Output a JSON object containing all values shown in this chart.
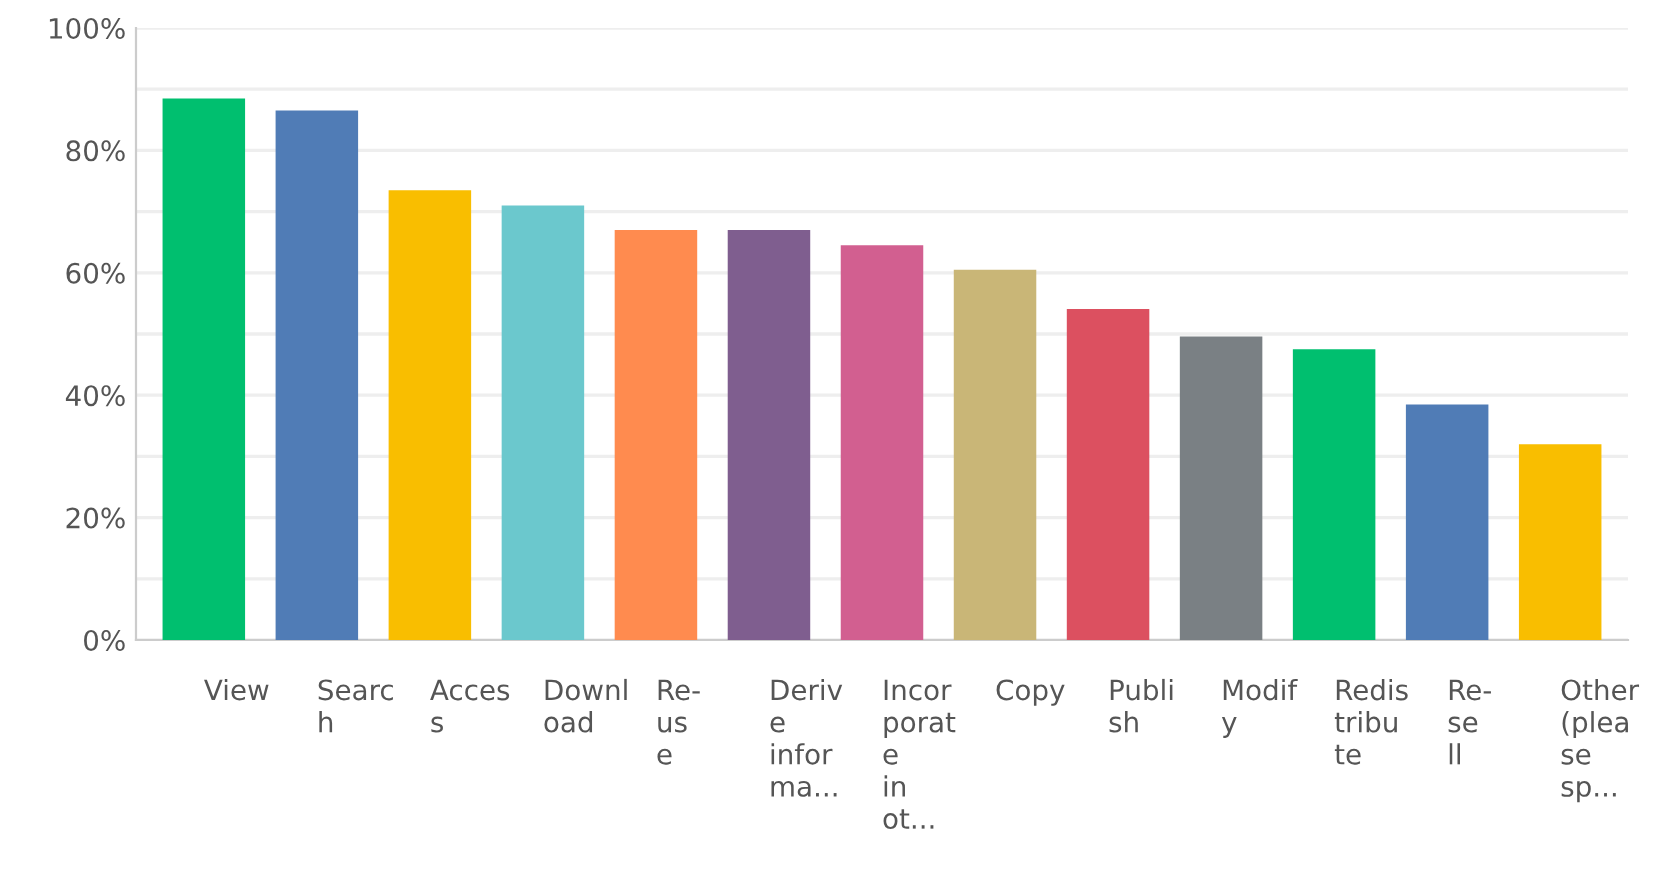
{
  "chart_data": {
    "type": "bar",
    "categories": [
      "View",
      "Searc\nh",
      "Acces\ns",
      "Downl\noad",
      "Re-\nus\ne",
      "Deriv\ne\ninfor\nma...",
      "Incor\nporat\ne\nin\not...",
      "Copy",
      "Publi\nsh",
      "Modif\ny",
      "Redis\ntribu\nte",
      "Re-\nse\nll",
      "Other\n(plea\nse\nsp..."
    ],
    "values": [
      88.5,
      86.5,
      73.5,
      71.0,
      67.0,
      67.0,
      64.5,
      60.5,
      54.1,
      49.6,
      47.5,
      38.5,
      32.0
    ],
    "colors": [
      "#00bf6f",
      "#507cb6",
      "#f9be00",
      "#6bc8cd",
      "#ff8b4f",
      "#7f5e8f",
      "#d25f90",
      "#c9b677",
      "#dc5060",
      "#7a8084",
      "#00bf6f",
      "#507cb6",
      "#f9be00"
    ],
    "ylim": [
      0,
      100
    ],
    "yticks": [
      {
        "value": 0,
        "label": "0%"
      },
      {
        "value": 10,
        "label": null
      },
      {
        "value": 20,
        "label": "20%"
      },
      {
        "value": 30,
        "label": null
      },
      {
        "value": 40,
        "label": "40%"
      },
      {
        "value": 50,
        "label": null
      },
      {
        "value": 60,
        "label": "60%"
      },
      {
        "value": 70,
        "label": null
      },
      {
        "value": 80,
        "label": "80%"
      },
      {
        "value": 90,
        "label": null
      },
      {
        "value": 100,
        "label": "100%"
      }
    ],
    "grid": "y"
  }
}
